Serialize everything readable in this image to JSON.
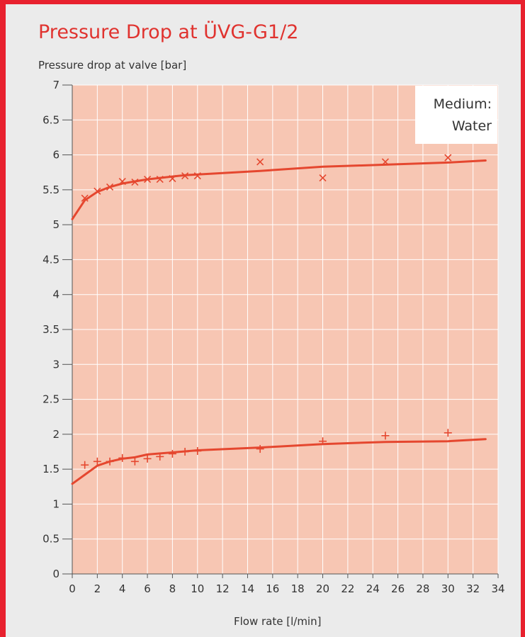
{
  "chart_data": {
    "type": "line",
    "title": "Pressure Drop at ÜVG-G1/2",
    "xlabel": "Flow rate [l/min]",
    "ylabel": "Pressure drop at valve [bar]",
    "annotation": [
      "Medium:",
      "Water"
    ],
    "xlim": [
      0,
      34
    ],
    "ylim": [
      0,
      7
    ],
    "x_ticks": [
      "0",
      "2",
      "4",
      "6",
      "8",
      "10",
      "12",
      "14",
      "16",
      "18",
      "20",
      "22",
      "24",
      "26",
      "28",
      "30",
      "32",
      "34"
    ],
    "y_ticks": [
      "0",
      "0.5",
      "1",
      "1.5",
      "2",
      "2.5",
      "3",
      "3.5",
      "4",
      "4.5",
      "5",
      "5.5",
      "6",
      "6.5",
      "7"
    ],
    "grid": true,
    "legend": "none",
    "colors": {
      "plot_background": "#f7c6b3",
      "series": "#e5472f",
      "gridline": "#ffffff",
      "frame": "#e8212e",
      "title": "#e0332f"
    },
    "series": [
      {
        "kind": "line",
        "x": [
          0,
          1,
          2,
          3,
          4,
          5,
          6,
          7,
          8,
          9,
          10,
          15,
          20,
          25,
          30,
          33
        ],
        "y": [
          5.08,
          5.35,
          5.47,
          5.54,
          5.59,
          5.62,
          5.65,
          5.67,
          5.69,
          5.71,
          5.72,
          5.77,
          5.83,
          5.86,
          5.89,
          5.92
        ]
      },
      {
        "kind": "scatter",
        "marker": "x",
        "x": [
          1,
          2,
          3,
          4,
          5,
          6,
          7,
          8,
          9,
          10,
          15,
          20,
          25,
          30
        ],
        "y": [
          5.38,
          5.48,
          5.54,
          5.62,
          5.61,
          5.65,
          5.65,
          5.66,
          5.7,
          5.7,
          5.9,
          5.67,
          5.9,
          5.96
        ]
      },
      {
        "kind": "line",
        "x": [
          0,
          1,
          2,
          3,
          4,
          5,
          6,
          8,
          10,
          15,
          20,
          25,
          30,
          33
        ],
        "y": [
          1.29,
          1.42,
          1.55,
          1.61,
          1.65,
          1.67,
          1.71,
          1.74,
          1.77,
          1.81,
          1.86,
          1.89,
          1.9,
          1.93
        ]
      },
      {
        "kind": "scatter",
        "marker": "+",
        "x": [
          1,
          2,
          3,
          4,
          5,
          6,
          7,
          8,
          9,
          10,
          15,
          20,
          25,
          30
        ],
        "y": [
          1.56,
          1.61,
          1.61,
          1.66,
          1.61,
          1.65,
          1.68,
          1.72,
          1.75,
          1.76,
          1.79,
          1.9,
          1.98,
          2.02
        ]
      }
    ]
  }
}
